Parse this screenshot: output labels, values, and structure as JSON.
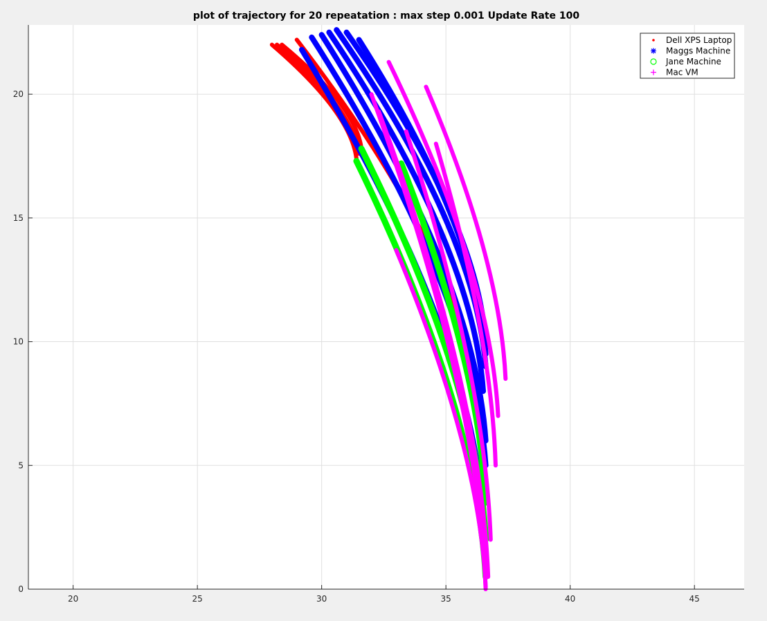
{
  "chart_data": {
    "type": "scatter",
    "title": "plot of trajectory for 20 repeatation : max step 0.001 Update Rate 100",
    "xlabel": "",
    "ylabel": "",
    "xlim": [
      18.2,
      47.0
    ],
    "ylim": [
      0,
      22.8
    ],
    "xticks": [
      20,
      25,
      30,
      35,
      40,
      45
    ],
    "yticks": [
      0,
      5,
      10,
      15,
      20
    ],
    "xtick_labels": [
      "20",
      "25",
      "30",
      "35",
      "40",
      "45"
    ],
    "ytick_labels": [
      "0",
      "5",
      "10",
      "15",
      "20"
    ],
    "grid": true,
    "legend_position": "top-right",
    "series": [
      {
        "name": "Dell XPS Laptop",
        "color": "#ff0000",
        "marker": "point",
        "trajectories": [
          {
            "start": [
              28.0,
              22.0
            ],
            "end": [
              31.4,
              17.4
            ]
          },
          {
            "start": [
              28.2,
              22.0
            ],
            "end": [
              31.5,
              17.6
            ]
          },
          {
            "start": [
              28.4,
              22.0
            ],
            "end": [
              31.6,
              17.8
            ]
          },
          {
            "start": [
              29.0,
              22.2
            ],
            "end": [
              36.4,
              7.0
            ]
          }
        ]
      },
      {
        "name": "Maggs Machine",
        "color": "#0000ff",
        "marker": "asterisk",
        "trajectories": [
          {
            "start": [
              29.2,
              21.8
            ],
            "end": [
              36.5,
              3.0
            ]
          },
          {
            "start": [
              29.6,
              22.3
            ],
            "end": [
              36.6,
              5.0
            ]
          },
          {
            "start": [
              30.0,
              22.4
            ],
            "end": [
              36.6,
              6.0
            ]
          },
          {
            "start": [
              30.3,
              22.5
            ],
            "end": [
              36.5,
              8.0
            ]
          },
          {
            "start": [
              30.6,
              22.6
            ],
            "end": [
              36.6,
              9.0
            ]
          },
          {
            "start": [
              31.0,
              22.5
            ],
            "end": [
              36.6,
              10.0
            ]
          },
          {
            "start": [
              31.5,
              22.2
            ],
            "end": [
              36.6,
              9.5
            ]
          }
        ]
      },
      {
        "name": "Jane Machine",
        "color": "#00ff00",
        "marker": "circle",
        "trajectories": [
          {
            "start": [
              31.4,
              17.3
            ],
            "end": [
              36.6,
              0.5
            ]
          },
          {
            "start": [
              31.6,
              17.8
            ],
            "end": [
              36.6,
              2.0
            ]
          },
          {
            "start": [
              33.2,
              17.2
            ],
            "end": [
              36.6,
              3.5
            ]
          }
        ]
      },
      {
        "name": "Mac VM",
        "color": "#ff00ff",
        "marker": "plus",
        "trajectories": [
          {
            "start": [
              32.0,
              20.0
            ],
            "end": [
              36.6,
              0.0
            ]
          },
          {
            "start": [
              32.3,
              19.3
            ],
            "end": [
              36.7,
              0.5
            ]
          },
          {
            "start": [
              32.7,
              21.3
            ],
            "end": [
              37.1,
              7.0
            ]
          },
          {
            "start": [
              33.0,
              13.7
            ],
            "end": [
              36.6,
              0.1
            ]
          },
          {
            "start": [
              33.4,
              18.5
            ],
            "end": [
              36.8,
              2.0
            ]
          },
          {
            "start": [
              34.2,
              20.3
            ],
            "end": [
              37.4,
              8.5
            ]
          },
          {
            "start": [
              34.6,
              18.0
            ],
            "end": [
              37.0,
              5.0
            ]
          }
        ]
      }
    ]
  },
  "colors": {
    "figure_background": "#f0f0f0",
    "axes_background": "#ffffff",
    "grid": "#dfdfdf",
    "axis": "#262626"
  }
}
